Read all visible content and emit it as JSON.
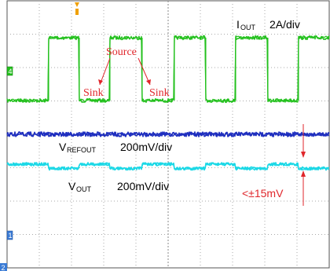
{
  "chart_data": {
    "type": "line",
    "title": "",
    "grid": true,
    "channels": [
      {
        "name": "I_OUT",
        "label_main": "I",
        "label_sub": "OUT",
        "scale": "2A/div",
        "color": "#22c01c",
        "shape": "square-wave",
        "marker": "4",
        "levels": {
          "high": "Source",
          "low": "Sink"
        }
      },
      {
        "name": "V_REFOUT",
        "label_main": "V",
        "label_sub": "REFOUT",
        "scale": "200mV/div",
        "color": "#1f2fbf",
        "shape": "flat-noisy"
      },
      {
        "name": "V_OUT",
        "label_main": "V",
        "label_sub": "OUT",
        "scale": "200mV/div",
        "color": "#1ad8e6",
        "shape": "stepped",
        "marker": "1"
      }
    ],
    "annotations": {
      "source": "Source",
      "sink_left": "Sink",
      "sink_right": "Sink",
      "deviation": "<±15mV"
    },
    "markers": {
      "ground_marker": "2"
    }
  },
  "colors": {
    "trigger_marker": "#f0a000",
    "annotation": "#e0262b",
    "grid": "#a9a9a9",
    "border": "#555555"
  }
}
